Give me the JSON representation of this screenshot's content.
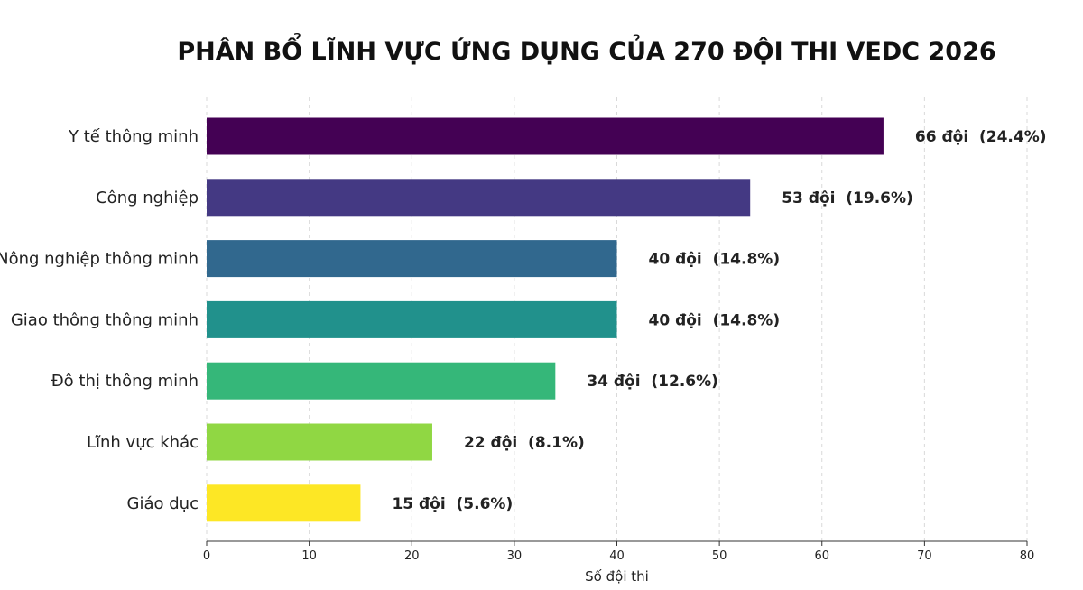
{
  "chart_data": {
    "type": "bar",
    "orientation": "horizontal",
    "title": "PHÂN BỔ LĨNH VỰC ỨNG DỤNG CỦA 270 ĐỘI THI VEDC 2026",
    "xlabel": "Số đội thi",
    "ylabel": "",
    "xlim": [
      0,
      80
    ],
    "xticks": [
      0,
      10,
      20,
      30,
      40,
      50,
      60,
      70,
      80
    ],
    "grid": "vertical dashed",
    "categories": [
      "Y tế thông minh",
      "Công nghiệp",
      "Nông nghiệp thông minh",
      "Giao thông thông minh",
      "Đô thị thông minh",
      "Lĩnh vực khác",
      "Giáo dục"
    ],
    "values": [
      66,
      53,
      40,
      40,
      34,
      22,
      15
    ],
    "value_labels": [
      "66 đội  (24.4%)",
      "53 đội  (19.6%)",
      "40 đội  (14.8%)",
      "40 đội  (14.8%)",
      "34 đội  (12.6%)",
      "22 đội  (8.1%)",
      "15 đội  (5.6%)"
    ],
    "colors": [
      "#440154",
      "#443983",
      "#31688e",
      "#21918c",
      "#35b779",
      "#90d743",
      "#fde725"
    ]
  }
}
